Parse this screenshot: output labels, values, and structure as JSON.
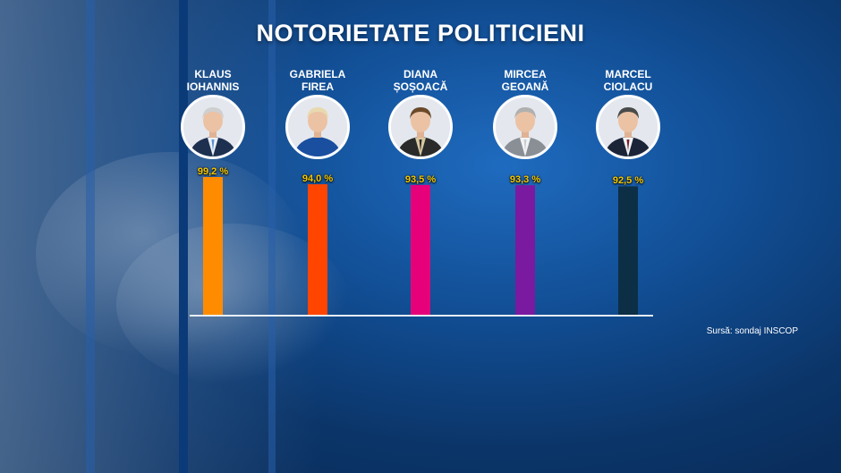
{
  "title": "NOTORIETATE POLITICIENI",
  "source": "Sursă: sondaj INSCOP",
  "politicians": [
    {
      "first": "KLAUS",
      "last": "IOHANNIS",
      "label": "99,2 %",
      "color": "#ff8c00",
      "suit": "#1e3050",
      "shirt": "#e9f0f7",
      "tie": "#5b8fd1",
      "hair": "#cfcfcf"
    },
    {
      "first": "GABRIELA",
      "last": "FIREA",
      "label": "94,0 %",
      "color": "#ff4500",
      "suit": "#1a4fa0",
      "shirt": "#1a4fa0",
      "tie": "#1a4fa0",
      "hair": "#e8d9b0"
    },
    {
      "first": "DIANA",
      "last": "ȘOȘOACĂ",
      "label": "93,5 %",
      "color": "#e6007a",
      "suit": "#2a2a2a",
      "shirt": "#d9c7a0",
      "tie": "#2a2a2a",
      "hair": "#6b4a2a"
    },
    {
      "first": "MIRCEA",
      "last": "GEOANĂ",
      "label": "93,3 %",
      "color": "#7a1aa0",
      "suit": "#8a8f96",
      "shirt": "#f1f3f5",
      "tie": "#c9ccd2",
      "hair": "#b0b0b0"
    },
    {
      "first": "MARCEL",
      "last": "CIOLACU",
      "label": "92,5 %",
      "color": "#0d2f45",
      "suit": "#1c2538",
      "shirt": "#f1f3f5",
      "tie": "#7a1f2b",
      "hair": "#4a4a4a"
    }
  ],
  "chart_data": {
    "type": "bar",
    "title": "NOTORIETATE POLITICIENI",
    "categories": [
      "KLAUS IOHANNIS",
      "GABRIELA FIREA",
      "DIANA ȘOȘOACĂ",
      "MIRCEA GEOANĂ",
      "MARCEL CIOLACU"
    ],
    "values": [
      99.2,
      94.0,
      93.5,
      93.3,
      92.5
    ],
    "unit": "%",
    "colors": [
      "#ff8c00",
      "#ff4500",
      "#e6007a",
      "#7a1aa0",
      "#0d2f45"
    ],
    "ylim": [
      0,
      100
    ],
    "grid": false,
    "legend": "none"
  }
}
